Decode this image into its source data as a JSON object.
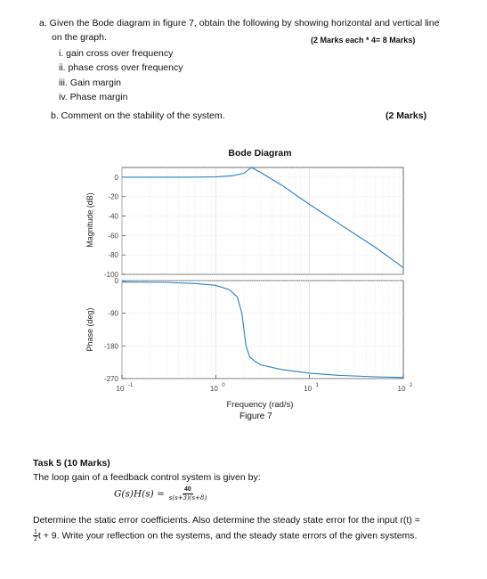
{
  "question_a": {
    "line1": "a. Given the Bode diagram in figure 7, obtain the following by showing horizontal and vertical line",
    "line2": "on the graph.",
    "marks": "(2 Marks each * 4= 8 Marks)",
    "items": [
      "i. gain cross over frequency",
      "ii. phase cross over frequency",
      "iii. Gain margin",
      "iv. Phase margin"
    ]
  },
  "question_b": {
    "text": "b.  Comment on the stability of the system.",
    "marks": "(2 Marks)"
  },
  "figure": {
    "caption": "Figure 7",
    "chart_data": [
      {
        "type": "line",
        "title": "Bode Diagram",
        "xlabel": "Frequency  (rad/s)",
        "ylabel": "Magnitude (dB)",
        "x_scale": "log",
        "xlim": [
          0.1,
          100
        ],
        "ylim": [
          -100,
          10
        ],
        "yticks": [
          "0",
          "-20",
          "-40",
          "-60",
          "-80",
          "-100"
        ],
        "grid": true,
        "series": [
          {
            "x": [
              0.1,
              0.5,
              1,
              1.5,
              2,
              2.4,
              3,
              5,
              10,
              20,
              50,
              100
            ],
            "y": [
              0,
              0,
              0.3,
              1.5,
              4,
              10,
              5,
              -8,
              -28,
              -47,
              -72,
              -93
            ]
          }
        ]
      },
      {
        "type": "line",
        "xlabel": "Frequency  (rad/s)",
        "ylabel": "Phase (deg)",
        "x_scale": "log",
        "xlim": [
          0.1,
          100
        ],
        "ylim": [
          -270,
          0
        ],
        "yticks": [
          "0",
          "-90",
          "-180",
          "-270"
        ],
        "xticks": [
          "10",
          "10",
          "10",
          "10"
        ],
        "xtick_exponents": [
          "-1",
          "0",
          "1",
          "2"
        ],
        "grid": true,
        "series": [
          {
            "x": [
              0.1,
              0.3,
              0.6,
              1,
              1.4,
              1.7,
              1.9,
              2.1,
              2.3,
              2.6,
              3,
              5,
              10,
              20,
              50,
              100
            ],
            "y": [
              -4,
              -5,
              -8,
              -13,
              -25,
              -45,
              -90,
              -180,
              -210,
              -222,
              -232,
              -245,
              -255,
              -261,
              -265,
              -267
            ]
          }
        ]
      }
    ]
  },
  "task5": {
    "heading": "Task 5 (10 Marks)",
    "intro": "The loop gain of a feedback control system is given by:",
    "tf_lhs": "G(s)H(s) =",
    "tf_num": "40",
    "tf_den": "s(s+3)(s+8)",
    "line1": "Determine the static error coefficients. Also determine the steady state error for the input r(t) =",
    "frac_num": "1",
    "frac_den": "2",
    "line2_rest": "t + 9. Write your reflection on the systems, and the steady state errors of the given systems."
  }
}
